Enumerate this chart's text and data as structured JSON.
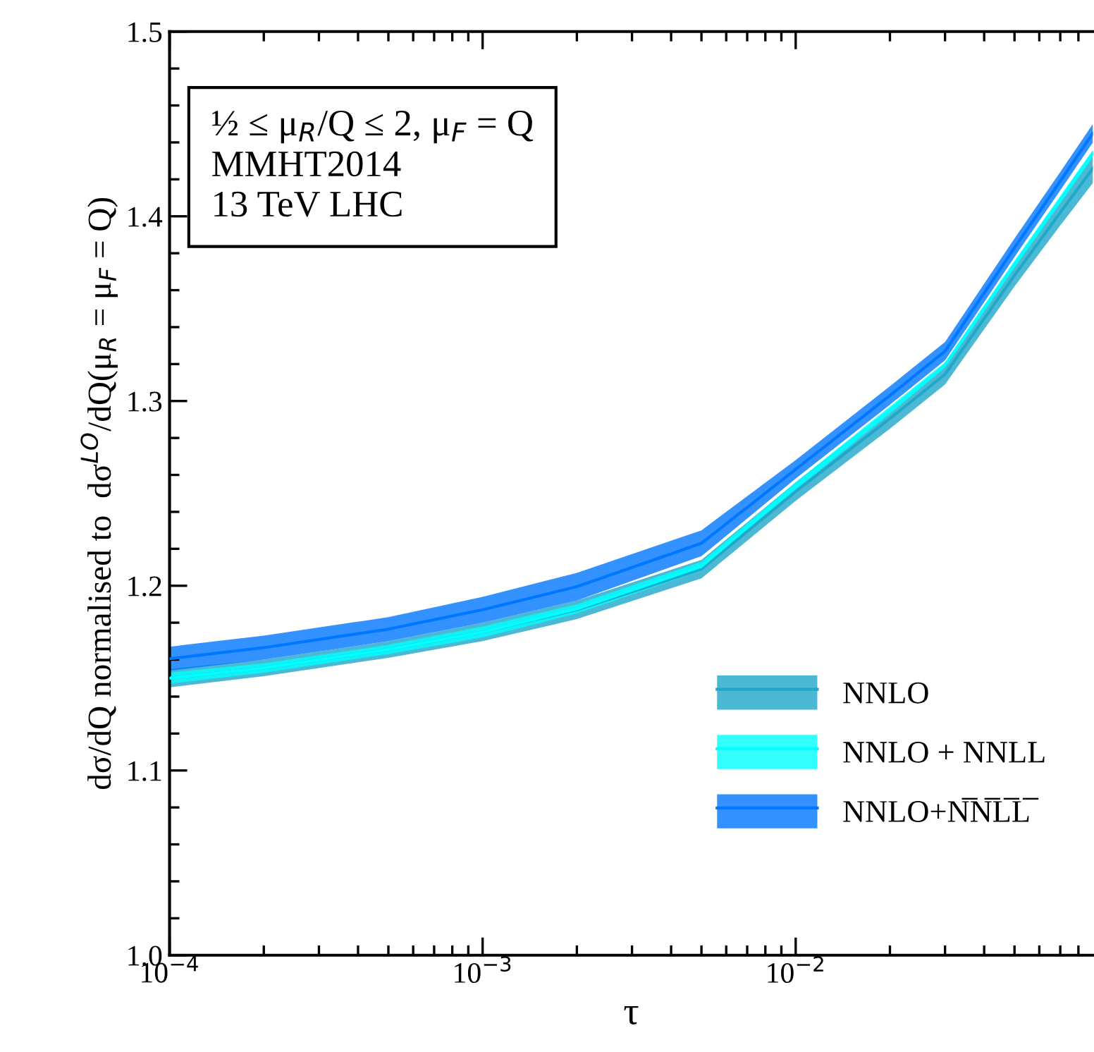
{
  "chart_data": {
    "type": "line",
    "xlabel": "τ",
    "ylabel": "dσ/dQ normalised to  dσ$^{LO}$/dQ(μ$_{R}$ = μ$_{F}$ = Q)",
    "x": [
      0.0001,
      0.0002,
      0.0005,
      0.001,
      0.002,
      0.005,
      0.01,
      0.02,
      0.03,
      0.05,
      0.07,
      0.089
    ],
    "series": [
      {
        "name": "NNLO",
        "color": "#1fa8c9",
        "values": [
          1.15,
          1.1555,
          1.1655,
          1.175,
          1.187,
          1.209,
          1.251,
          1.2905,
          1.3145,
          1.368,
          1.402,
          1.426
        ],
        "lower": [
          1.145,
          1.151,
          1.161,
          1.17,
          1.182,
          1.204,
          1.246,
          1.285,
          1.309,
          1.362,
          1.395,
          1.418
        ],
        "upper": [
          1.155,
          1.16,
          1.17,
          1.18,
          1.192,
          1.214,
          1.256,
          1.296,
          1.32,
          1.374,
          1.409,
          1.434
        ]
      },
      {
        "name": "NNLO + NNLL",
        "color": "#00ffff",
        "values": [
          1.15,
          1.1555,
          1.1655,
          1.175,
          1.1875,
          1.2105,
          1.254,
          1.295,
          1.3195,
          1.374,
          1.409,
          1.434
        ],
        "lower": [
          1.147,
          1.153,
          1.163,
          1.172,
          1.185,
          1.208,
          1.252,
          1.293,
          1.318,
          1.372,
          1.407,
          1.432
        ],
        "upper": [
          1.153,
          1.158,
          1.168,
          1.178,
          1.19,
          1.213,
          1.256,
          1.297,
          1.321,
          1.376,
          1.411,
          1.436
        ]
      },
      {
        "name": "NNLO+N̅N̅L̅L̅",
        "color": "#0077ff",
        "values": [
          1.1605,
          1.1665,
          1.1765,
          1.187,
          1.1995,
          1.223,
          1.263,
          1.303,
          1.327,
          1.383,
          1.419,
          1.445
        ],
        "lower": [
          1.154,
          1.16,
          1.17,
          1.18,
          1.192,
          1.216,
          1.258,
          1.298,
          1.322,
          1.378,
          1.414,
          1.44
        ],
        "upper": [
          1.167,
          1.173,
          1.183,
          1.194,
          1.207,
          1.23,
          1.268,
          1.308,
          1.332,
          1.388,
          1.424,
          1.45
        ]
      }
    ],
    "log": "x",
    "xlim": [
      0.0001,
      0.089
    ],
    "xticks": [
      {
        "value": 0.0001,
        "label": "10$^{−4}$"
      },
      {
        "value": 0.001,
        "label": "10$^{−3}$"
      },
      {
        "value": 0.01,
        "label": "10$^{−2}$"
      }
    ],
    "ylim": [
      1.0,
      1.5
    ],
    "yticks": [
      {
        "value": 1.0,
        "label": "1.0"
      },
      {
        "value": 1.1,
        "label": "1.1"
      },
      {
        "value": 1.2,
        "label": "1.2"
      },
      {
        "value": 1.3,
        "label": "1.3"
      },
      {
        "value": 1.4,
        "label": "1.4"
      },
      {
        "value": 1.5,
        "label": "1.5"
      }
    ],
    "annotations": [
      "½ ≤ μ$_{R}$/Q ≤ 2, μ$_{F}$ = Q",
      "MMHT2014",
      "13 TeV LHC"
    ],
    "legend": "right",
    "grid": false
  }
}
